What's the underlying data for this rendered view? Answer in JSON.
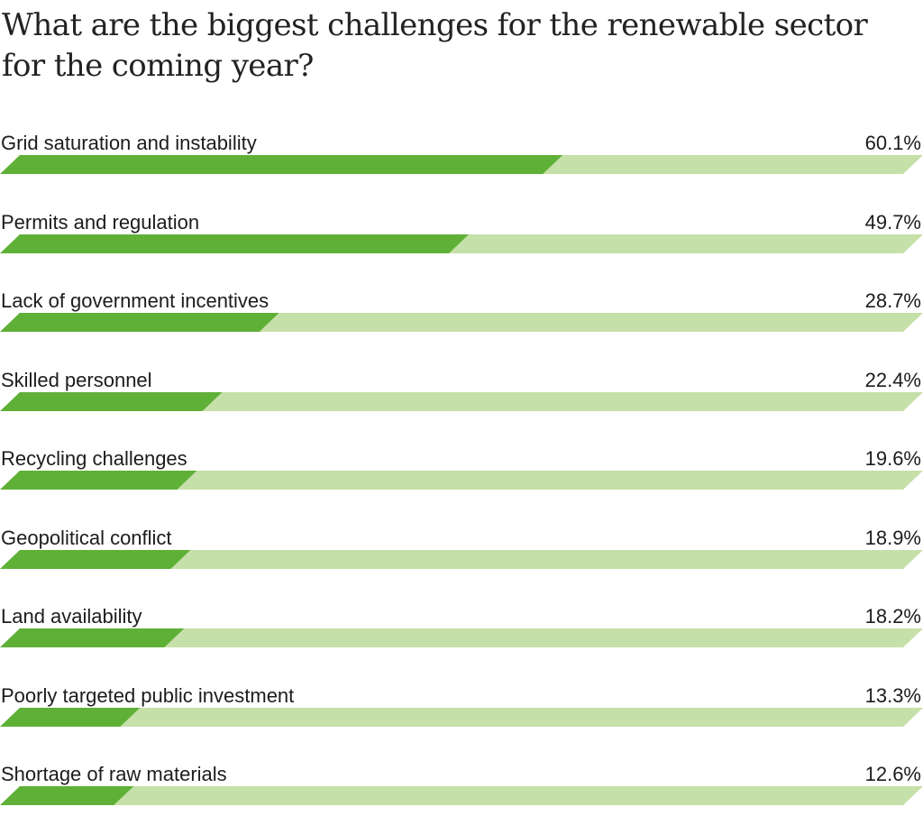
{
  "title": "What are the biggest challenges for the renewable sector for the coming year?",
  "colors": {
    "bar_fill": "#5fb037",
    "bar_track": "#c5e0a8",
    "text": "#1c1c1c"
  },
  "chart_data": {
    "type": "bar",
    "orientation": "horizontal",
    "title": "What are the biggest challenges for the renewable sector for the coming year?",
    "categories": [
      "Grid saturation and instability",
      "Permits and regulation",
      "Lack of government incentives",
      "Skilled personnel",
      "Recycling challenges",
      "Geopolitical conflict",
      "Land availability",
      "Poorly targeted public investment",
      "Shortage of raw materials"
    ],
    "values": [
      60.1,
      49.7,
      28.7,
      22.4,
      19.6,
      18.9,
      18.2,
      13.3,
      12.6
    ],
    "value_labels": [
      "60.1%",
      "49.7%",
      "28.7%",
      "22.4%",
      "19.6%",
      "18.9%",
      "18.2%",
      "13.3%",
      "12.6%"
    ],
    "xlim": [
      0,
      100
    ],
    "unit": "%",
    "grid": false,
    "legend": "none"
  }
}
